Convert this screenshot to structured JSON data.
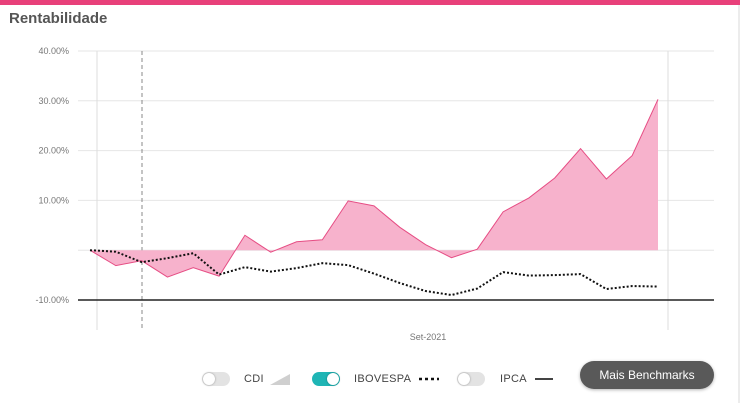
{
  "title": "Rentabilidade",
  "chart_data": {
    "type": "area",
    "y_ticks": [
      "40.00%",
      "30.00%",
      "20.00%",
      "10.00%",
      "-10.00%"
    ],
    "x_tick_labels": [
      "Set-2021"
    ],
    "ylim": [
      -10,
      40
    ],
    "series": [
      {
        "values": [
          0.0,
          -3.1,
          -2.1,
          -5.4,
          -3.5,
          -5.2,
          3.0,
          -0.4,
          1.7,
          2.1,
          9.9,
          8.9,
          4.6,
          1.1,
          -1.5,
          0.2,
          7.7,
          10.5,
          14.5,
          20.4,
          14.3,
          19.0,
          30.3
        ]
      },
      {
        "name": "IBOVESPA",
        "values": [
          0.0,
          -0.3,
          -2.4,
          -1.6,
          -0.6,
          -4.9,
          -3.4,
          -4.3,
          -3.6,
          -2.6,
          -3.0,
          -4.7,
          -6.6,
          -8.2,
          -9.0,
          -7.7,
          -4.4,
          -5.1,
          -5.0,
          -4.8,
          -7.8,
          -7.2,
          -7.3
        ]
      }
    ],
    "grid": true
  },
  "legend": [
    {
      "label": "CDI",
      "enabled": false,
      "marker": "area-icon"
    },
    {
      "label": "IBOVESPA",
      "enabled": true,
      "marker": "dotted-line-icon"
    },
    {
      "label": "IPCA",
      "enabled": false,
      "marker": "solid-line-icon"
    }
  ],
  "button": {
    "label": "Mais Benchmarks"
  },
  "colors": {
    "accent": "#e8407a",
    "area_fill": "#f7b2cc",
    "area_stroke": "#e64d84",
    "toggle_on": "#1fb5b5"
  }
}
